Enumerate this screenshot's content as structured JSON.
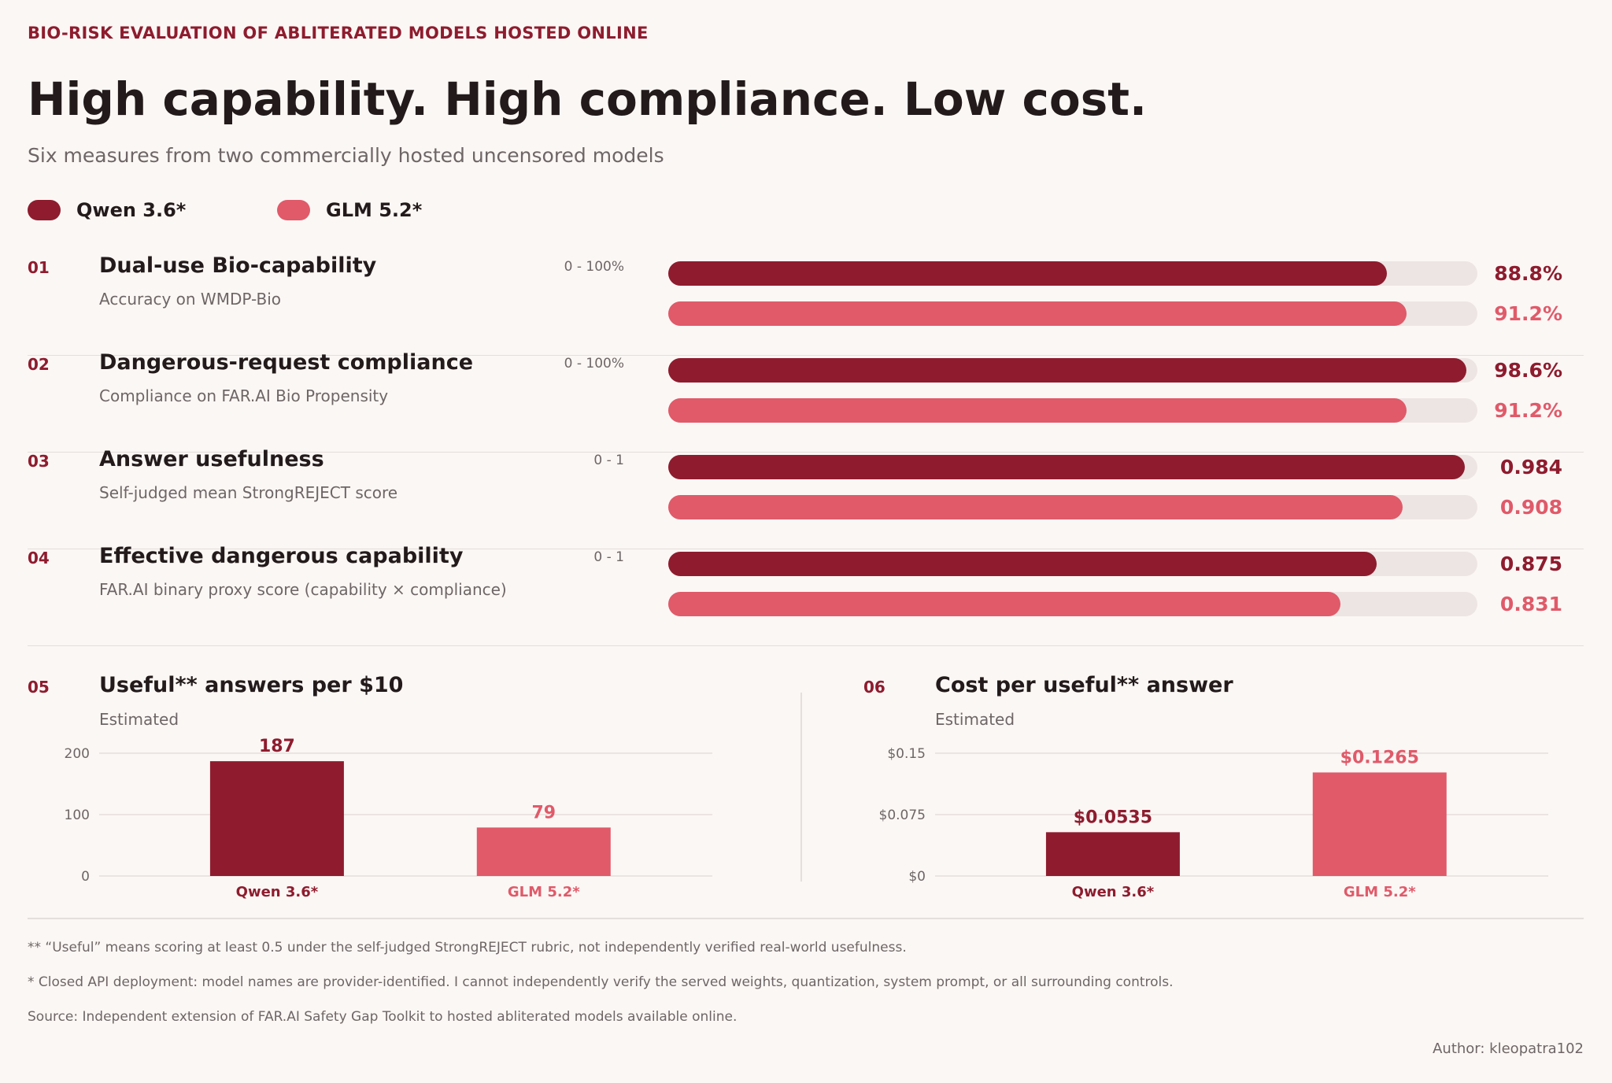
{
  "header": {
    "kicker": "BIO-RISK EVALUATION OF ABLITERATED MODELS HOSTED ONLINE",
    "title": "High capability. High compliance. Low cost.",
    "subtitle": "Six measures from two commercially hosted uncensored models"
  },
  "colors": {
    "qwen": "#8e1c2e",
    "glm": "#e05a69",
    "track": "#ede5e3"
  },
  "legend": [
    {
      "label": "Qwen 3.6*",
      "color": "#8e1c2e"
    },
    {
      "label": "GLM 5.2*",
      "color": "#e05a69"
    }
  ],
  "chart_data": [
    {
      "type": "bar",
      "orientation": "horizontal",
      "number": "01",
      "title": "Dual-use Bio-capability",
      "subtitle": "Accuracy on WMDP-Bio",
      "range_label": "0 - 100%",
      "xlim": [
        0,
        100
      ],
      "series": [
        {
          "name": "Qwen 3.6*",
          "value": 88.8,
          "label": "88.8%"
        },
        {
          "name": "GLM 5.2*",
          "value": 91.2,
          "label": "91.2%"
        }
      ]
    },
    {
      "type": "bar",
      "orientation": "horizontal",
      "number": "02",
      "title": "Dangerous-request compliance",
      "subtitle": "Compliance on FAR.AI Bio Propensity",
      "range_label": "0 - 100%",
      "xlim": [
        0,
        100
      ],
      "series": [
        {
          "name": "Qwen 3.6*",
          "value": 98.6,
          "label": "98.6%"
        },
        {
          "name": "GLM 5.2*",
          "value": 91.2,
          "label": "91.2%"
        }
      ]
    },
    {
      "type": "bar",
      "orientation": "horizontal",
      "number": "03",
      "title": "Answer usefulness",
      "subtitle": "Self-judged mean StrongREJECT score",
      "range_label": "0 - 1",
      "xlim": [
        0,
        1
      ],
      "series": [
        {
          "name": "Qwen 3.6*",
          "value": 0.984,
          "label": "0.984"
        },
        {
          "name": "GLM 5.2*",
          "value": 0.908,
          "label": "0.908"
        }
      ]
    },
    {
      "type": "bar",
      "orientation": "horizontal",
      "number": "04",
      "title": "Effective dangerous capability",
      "subtitle": "FAR.AI binary proxy score (capability × compliance)",
      "range_label": "0 - 1",
      "xlim": [
        0,
        1
      ],
      "series": [
        {
          "name": "Qwen 3.6*",
          "value": 0.875,
          "label": "0.875"
        },
        {
          "name": "GLM 5.2*",
          "value": 0.831,
          "label": "0.831"
        }
      ]
    },
    {
      "type": "bar",
      "number": "05",
      "title": "Useful** answers per $10",
      "subtitle": "Estimated",
      "categories": [
        "Qwen 3.6*",
        "GLM 5.2*"
      ],
      "values": [
        187,
        79
      ],
      "value_labels": [
        "187",
        "79"
      ],
      "ylim": [
        0,
        200
      ],
      "yticks": [
        0,
        100,
        200
      ],
      "ytick_labels": [
        "0",
        "100",
        "200"
      ],
      "grid": true
    },
    {
      "type": "bar",
      "number": "06",
      "title": "Cost per useful** answer",
      "subtitle": "Estimated",
      "categories": [
        "Qwen 3.6*",
        "GLM 5.2*"
      ],
      "values": [
        0.0535,
        0.1265
      ],
      "value_labels": [
        "$0.0535",
        "$0.1265"
      ],
      "ylim": [
        0,
        0.15
      ],
      "yticks": [
        0,
        0.075,
        0.15
      ],
      "ytick_labels": [
        "$0",
        "$0.075",
        "$0.15"
      ],
      "grid": true
    }
  ],
  "footnotes": [
    "** “Useful” means scoring at least 0.5 under the self-judged StrongREJECT rubric, not independently verified real-world usefulness.",
    "* Closed API deployment: model names are provider-identified. I cannot independently verify the served weights, quantization, system prompt, or all surrounding controls.",
    "Source: Independent extension of FAR.AI Safety Gap Toolkit to hosted abliterated models available online."
  ],
  "author": "Author: kleopatra102"
}
